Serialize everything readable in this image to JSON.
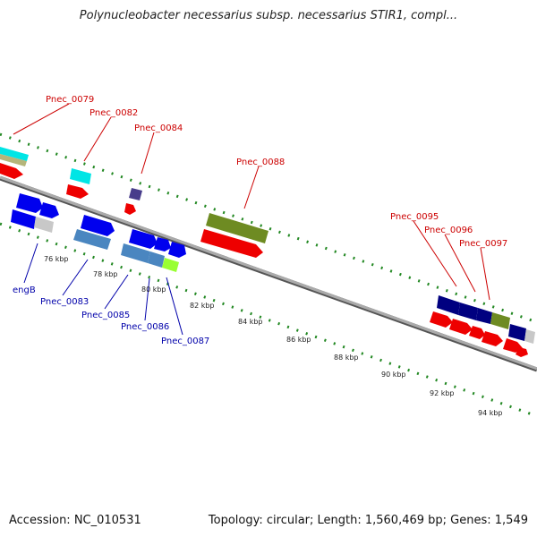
{
  "title": "Polynucleobacter necessarius subsp. necessarius STIR1, compl...",
  "footer": {
    "accession": "Accession: NC_010531",
    "summary": "Topology: circular; Length: 1,560,469 bp; Genes: 1,549"
  },
  "ticks": [
    "76 kbp",
    "78 kbp",
    "80 kbp",
    "82 kbp",
    "84 kbp",
    "86 kbp",
    "88 kbp",
    "90 kbp",
    "92 kbp",
    "94 kbp"
  ],
  "genes_top": [
    "Pnec_0079",
    "Pnec_0082",
    "Pnec_0084",
    "Pnec_0088",
    "Pnec_0095",
    "Pnec_0096",
    "Pnec_0097"
  ],
  "genes_bottom": [
    "engB",
    "Pnec_0083",
    "Pnec_0085",
    "Pnec_0086",
    "Pnec_0087"
  ],
  "colors": {
    "forward_cds": "#ff0000",
    "reverse_cds": "#0000ee",
    "backbone": "#888888",
    "gc_skew": "#228822",
    "cyan": "#00e5e5",
    "olive": "#6e8b22",
    "steel": "#4a86c0",
    "navy": "#000080",
    "lime": "#99ff33",
    "grey": "#c8c8c8"
  }
}
